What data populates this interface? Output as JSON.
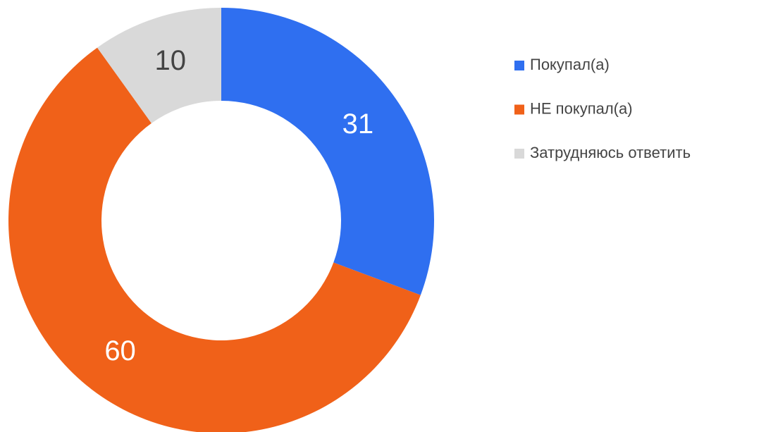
{
  "chart_data": {
    "type": "donut",
    "categories": [
      "Покупал(а)",
      "НЕ покупал(а)",
      "Затрудняюсь ответить"
    ],
    "values": [
      31,
      60,
      10
    ],
    "colors": [
      "#2f6ff0",
      "#f06119",
      "#d9d9d9"
    ],
    "label_colors": [
      "#ffffff",
      "#ffffff",
      "#444444"
    ],
    "legend": "right"
  }
}
